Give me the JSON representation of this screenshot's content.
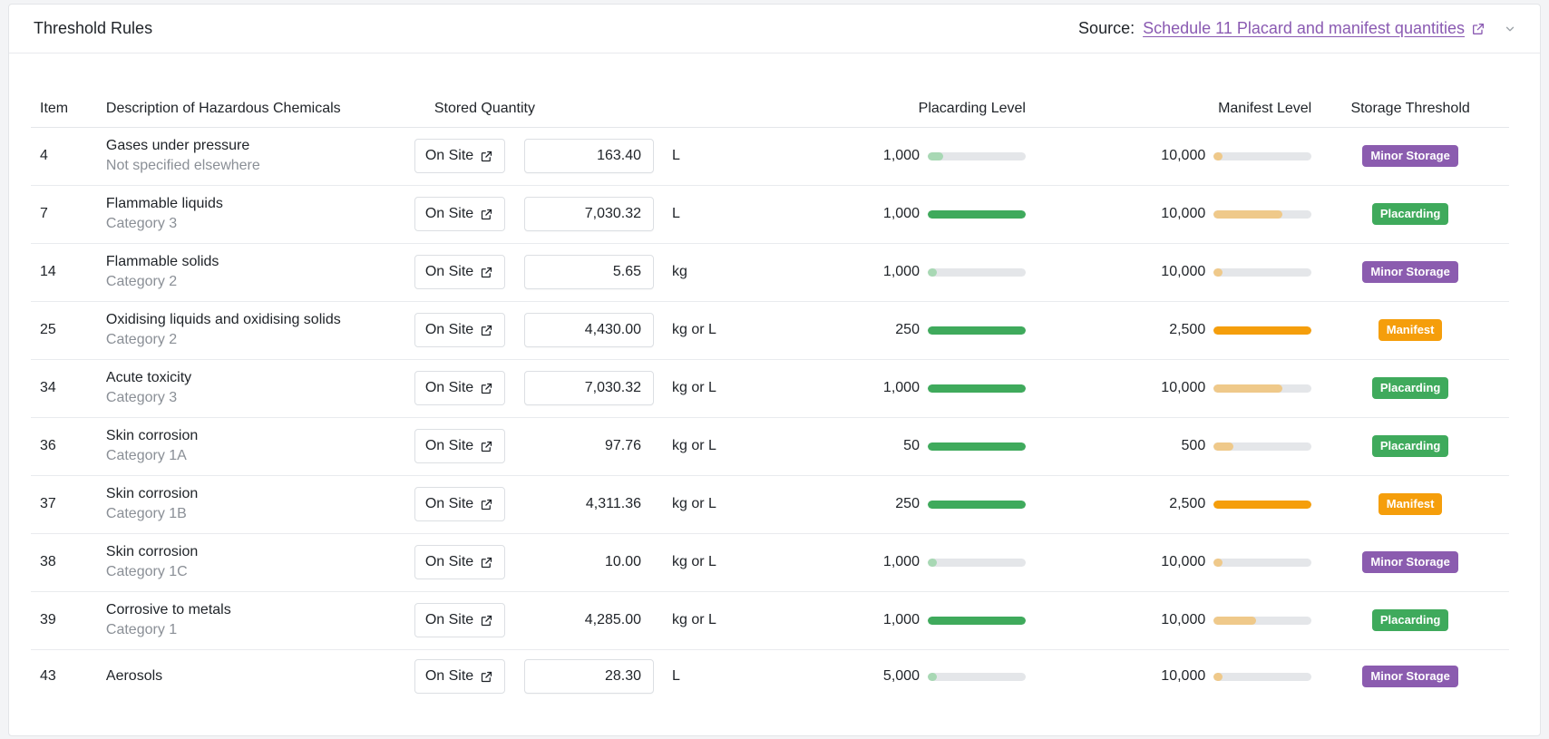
{
  "header": {
    "title": "Threshold Rules",
    "source_label": "Source:",
    "source_link": "Schedule 11 Placard and manifest quantities"
  },
  "table": {
    "columns": {
      "item": "Item",
      "description": "Description of Hazardous Chemicals",
      "stored_quantity": "Stored Quantity",
      "placarding_level": "Placarding Level",
      "manifest_level": "Manifest Level",
      "storage_threshold": "Storage Threshold"
    },
    "onsite_label": "On Site",
    "rows": [
      {
        "item": "4",
        "name": "Gases under pressure",
        "sub": "Not specified elsewhere",
        "qty": "163.40",
        "editable": true,
        "unit": "L",
        "plac": "1,000",
        "plac_fill": 0.16,
        "plac_tone": "faded",
        "man": "10,000",
        "man_fill": 0.09,
        "man_tone": "faded",
        "threshold": "Minor Storage",
        "badge": "minor"
      },
      {
        "item": "7",
        "name": "Flammable liquids",
        "sub": "Category 3",
        "qty": "7,030.32",
        "editable": true,
        "unit": "L",
        "plac": "1,000",
        "plac_fill": 1,
        "plac_tone": "full",
        "man": "10,000",
        "man_fill": 0.7,
        "man_tone": "faded",
        "threshold": "Placarding",
        "badge": "placarding"
      },
      {
        "item": "14",
        "name": "Flammable solids",
        "sub": "Category 2",
        "qty": "5.65",
        "editable": true,
        "unit": "kg",
        "plac": "1,000",
        "plac_fill": 0.09,
        "plac_tone": "faded",
        "man": "10,000",
        "man_fill": 0.09,
        "man_tone": "faded",
        "threshold": "Minor Storage",
        "badge": "minor"
      },
      {
        "item": "25",
        "name": "Oxidising liquids and oxidising solids",
        "sub": "Category 2",
        "qty": "4,430.00",
        "editable": true,
        "unit": "kg or L",
        "plac": "250",
        "plac_fill": 1,
        "plac_tone": "full",
        "man": "2,500",
        "man_fill": 1,
        "man_tone": "full",
        "threshold": "Manifest",
        "badge": "manifest"
      },
      {
        "item": "34",
        "name": "Acute toxicity",
        "sub": "Category 3",
        "qty": "7,030.32",
        "editable": true,
        "unit": "kg or L",
        "plac": "1,000",
        "plac_fill": 1,
        "plac_tone": "full",
        "man": "10,000",
        "man_fill": 0.7,
        "man_tone": "faded",
        "threshold": "Placarding",
        "badge": "placarding"
      },
      {
        "item": "36",
        "name": "Skin corrosion",
        "sub": "Category 1A",
        "qty": "97.76",
        "editable": false,
        "unit": "kg or L",
        "plac": "50",
        "plac_fill": 1,
        "plac_tone": "full",
        "man": "500",
        "man_fill": 0.2,
        "man_tone": "faded",
        "threshold": "Placarding",
        "badge": "placarding"
      },
      {
        "item": "37",
        "name": "Skin corrosion",
        "sub": "Category 1B",
        "qty": "4,311.36",
        "editable": false,
        "unit": "kg or L",
        "plac": "250",
        "plac_fill": 1,
        "plac_tone": "full",
        "man": "2,500",
        "man_fill": 1,
        "man_tone": "full",
        "threshold": "Manifest",
        "badge": "manifest"
      },
      {
        "item": "38",
        "name": "Skin corrosion",
        "sub": "Category 1C",
        "qty": "10.00",
        "editable": false,
        "unit": "kg or L",
        "plac": "1,000",
        "plac_fill": 0.09,
        "plac_tone": "faded",
        "man": "10,000",
        "man_fill": 0.09,
        "man_tone": "faded",
        "threshold": "Minor Storage",
        "badge": "minor"
      },
      {
        "item": "39",
        "name": "Corrosive to metals",
        "sub": "Category 1",
        "qty": "4,285.00",
        "editable": false,
        "unit": "kg or L",
        "plac": "1,000",
        "plac_fill": 1,
        "plac_tone": "full",
        "man": "10,000",
        "man_fill": 0.43,
        "man_tone": "faded",
        "threshold": "Placarding",
        "badge": "placarding"
      },
      {
        "item": "43",
        "name": "Aerosols",
        "sub": "",
        "qty": "28.30",
        "editable": true,
        "unit": "L",
        "plac": "5,000",
        "plac_fill": 0.09,
        "plac_tone": "faded",
        "man": "10,000",
        "man_fill": 0.09,
        "man_tone": "faded",
        "threshold": "Minor Storage",
        "badge": "minor"
      }
    ]
  },
  "colors": {
    "placarding_full": "#3faa5c",
    "placarding_faded": "#a8d8b4",
    "manifest_full": "#f59e0b",
    "manifest_faded": "#efc98a",
    "badge_minor": "#8b5caf",
    "badge_placarding": "#3faa5c",
    "badge_manifest": "#f59e0b",
    "link": "#8a5ab2"
  },
  "icons": {
    "external_link": "external-link-icon",
    "chevron": "chevron-down-icon"
  }
}
